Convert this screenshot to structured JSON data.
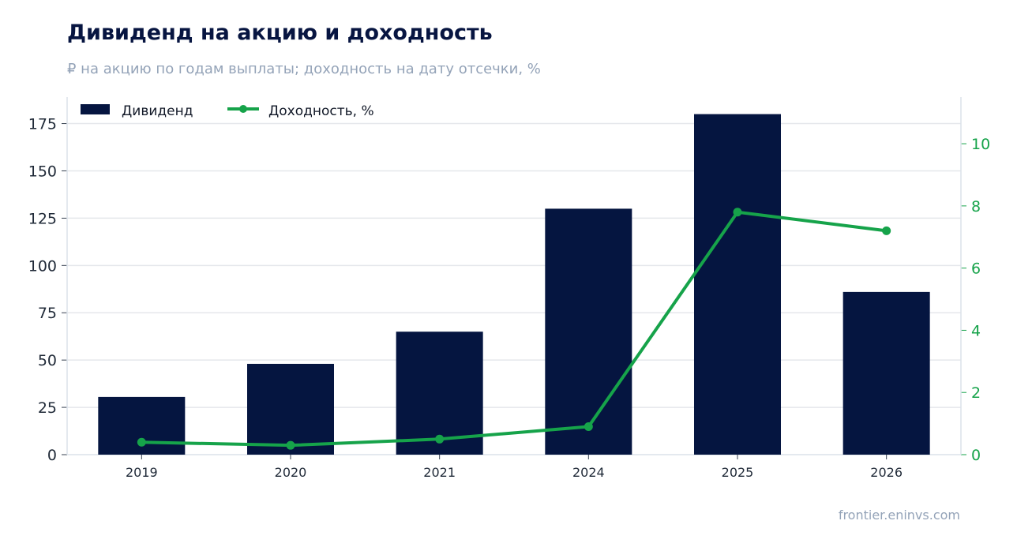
{
  "chart_data": {
    "type": "bar+line",
    "title": "Дивиденд на акцию и доходность",
    "subtitle": "₽ на акцию по годам выплаты; доходность на дату отсечки, %",
    "categories": [
      "2019",
      "2020",
      "2021",
      "2024",
      "2025",
      "2026"
    ],
    "series": [
      {
        "name": "Дивиденд",
        "type": "bar",
        "axis": "left",
        "values": [
          30.5,
          48,
          65,
          130,
          180,
          86
        ]
      },
      {
        "name": "Доходность, %",
        "type": "line",
        "axis": "right",
        "values": [
          0.4,
          0.3,
          0.5,
          0.9,
          7.8,
          7.2
        ]
      }
    ],
    "y_left": {
      "ylim": [
        0,
        189
      ],
      "ticks": [
        0,
        25,
        50,
        75,
        100,
        125,
        150,
        175
      ]
    },
    "y_right": {
      "ylim": [
        0,
        11.5
      ],
      "ticks": [
        0,
        2,
        4,
        6,
        8,
        10
      ]
    },
    "grid": true,
    "legend_placement": "top-left"
  },
  "colors": {
    "bar": "#051540",
    "line": "#16a34a",
    "grid": "#e5e7eb",
    "axis": "#dbe2ea"
  },
  "source": "frontier.eninvs.com"
}
